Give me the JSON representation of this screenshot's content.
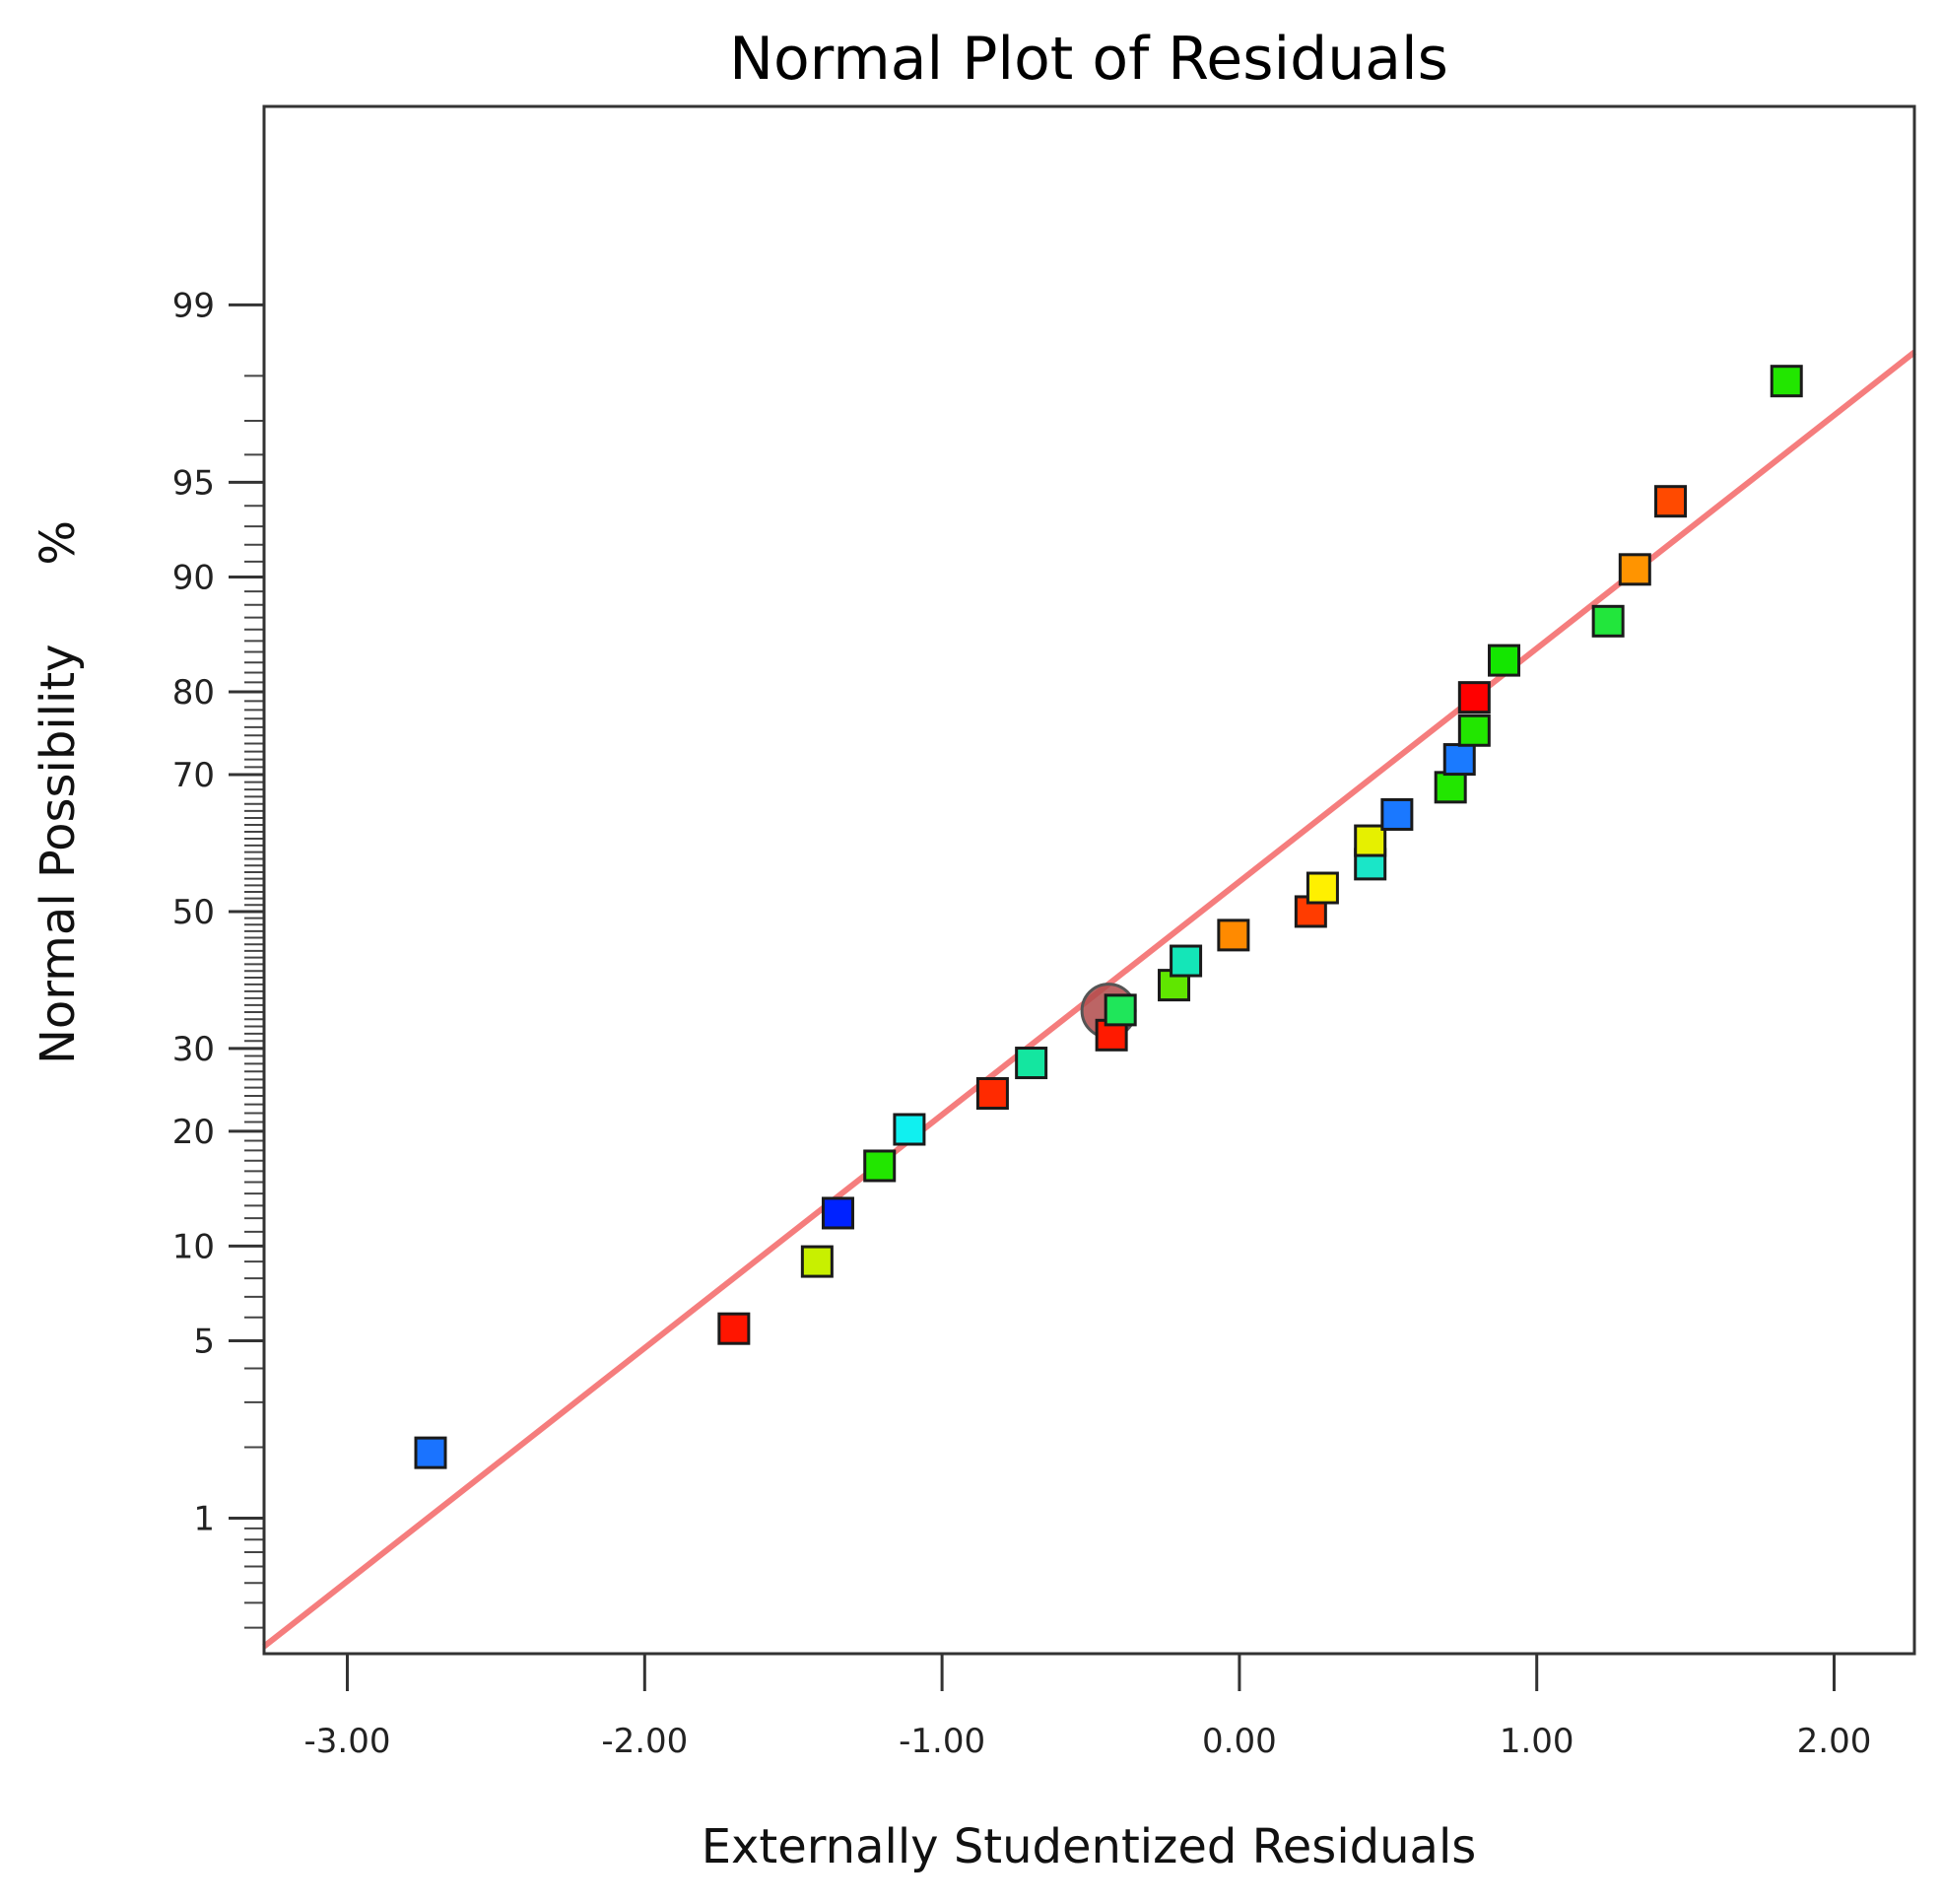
{
  "chart_data": {
    "type": "scatter",
    "title": "Normal Plot of Residuals",
    "xlabel": "Externally Studentized Residuals",
    "ylabel": "Normal Possibility",
    "ylabel_unit": "%",
    "x_scale": "linear",
    "y_scale": "normal-probability",
    "xlim": [
      -3.28,
      2.27
    ],
    "ylim_percent": [
      0.22,
      99.9
    ],
    "x_ticks": [
      -3,
      -2,
      -1,
      0,
      1,
      2
    ],
    "x_tick_labels": [
      "-3.00",
      "-2.00",
      "-1.00",
      "0.00",
      "1.00",
      "2.00"
    ],
    "y_ticks": [
      1,
      5,
      10,
      20,
      30,
      50,
      70,
      80,
      90,
      95,
      99
    ],
    "y_tick_labels": [
      "1",
      "5",
      "10",
      "20",
      "30",
      "50",
      "70",
      "80",
      "90",
      "95",
      "99"
    ],
    "fit_line": {
      "color": "#f57d7d",
      "from": {
        "x": -3.28,
        "y": 0.24
      },
      "to": {
        "x": 2.27,
        "y": 98.4
      }
    },
    "highlighted_point": {
      "x": -0.44,
      "y": 35.2,
      "color": "#b04a4a"
    },
    "points": [
      {
        "x": -2.72,
        "y": 1.9,
        "color": "#1a73ff"
      },
      {
        "x": -1.7,
        "y": 5.5,
        "color": "#ff1500"
      },
      {
        "x": -1.42,
        "y": 9.0,
        "color": "#c8f000"
      },
      {
        "x": -1.35,
        "y": 12.4,
        "color": "#0022ff"
      },
      {
        "x": -1.21,
        "y": 16.5,
        "color": "#22e600"
      },
      {
        "x": -1.11,
        "y": 20.2,
        "color": "#10f0f0"
      },
      {
        "x": -0.83,
        "y": 24.3,
        "color": "#ff2a00"
      },
      {
        "x": -0.7,
        "y": 28.1,
        "color": "#14e6a0"
      },
      {
        "x": -0.43,
        "y": 31.8,
        "color": "#ff1a00"
      },
      {
        "x": -0.4,
        "y": 35.3,
        "color": "#1fe65a"
      },
      {
        "x": -0.22,
        "y": 38.9,
        "color": "#60e600"
      },
      {
        "x": -0.18,
        "y": 42.5,
        "color": "#14e6b8"
      },
      {
        "x": -0.02,
        "y": 46.4,
        "color": "#ff8a00"
      },
      {
        "x": 0.24,
        "y": 50.0,
        "color": "#ff3c00"
      },
      {
        "x": 0.28,
        "y": 53.6,
        "color": "#fff000"
      },
      {
        "x": 0.44,
        "y": 57.2,
        "color": "#1ae6c8"
      },
      {
        "x": 0.44,
        "y": 60.7,
        "color": "#e6f000"
      },
      {
        "x": 0.53,
        "y": 64.5,
        "color": "#1a78ff"
      },
      {
        "x": 0.71,
        "y": 68.3,
        "color": "#22e600"
      },
      {
        "x": 0.74,
        "y": 72.0,
        "color": "#1a7aff"
      },
      {
        "x": 0.79,
        "y": 75.6,
        "color": "#22e600"
      },
      {
        "x": 0.79,
        "y": 79.4,
        "color": "#ff0000"
      },
      {
        "x": 0.89,
        "y": 83.2,
        "color": "#14e600"
      },
      {
        "x": 1.24,
        "y": 86.7,
        "color": "#22e63c"
      },
      {
        "x": 1.33,
        "y": 90.5,
        "color": "#ff9400"
      },
      {
        "x": 1.45,
        "y": 94.2,
        "color": "#ff4a00"
      },
      {
        "x": 1.84,
        "y": 97.9,
        "color": "#22e600"
      }
    ]
  }
}
